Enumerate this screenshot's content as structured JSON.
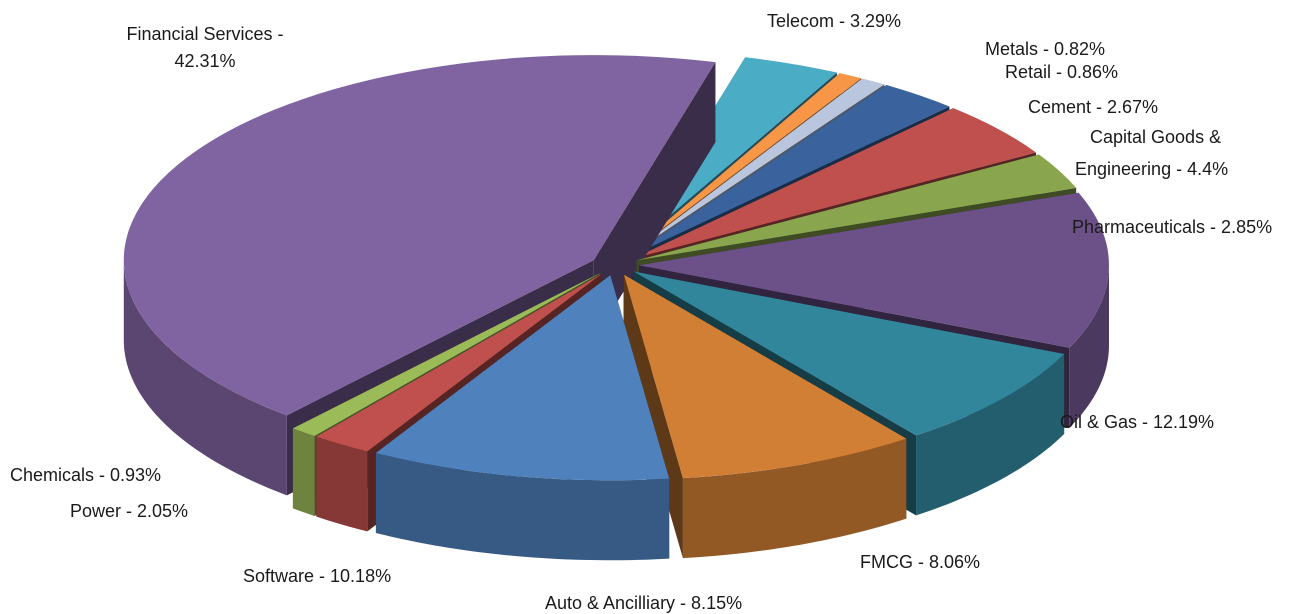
{
  "chart_data": {
    "type": "pie3d",
    "labels": [
      [
        "Telecom - 3.29%"
      ],
      [
        "Metals - 0.82%"
      ],
      [
        "Retail - 0.86%"
      ],
      [
        "Cement - 2.67%"
      ],
      [
        "Capital Goods &",
        "Engineering - 4.4%"
      ],
      [
        "Pharmaceuticals - 2.85%"
      ],
      [
        "Oil & Gas  - 12.19%"
      ],
      [
        "FMCG - 8.06%"
      ],
      [
        "Auto & Ancilliary - 8.15%"
      ],
      [
        "Software - 10.18%"
      ],
      [
        "Power - 2.05%"
      ],
      [
        "Chemicals - 0.93%"
      ],
      [
        "Financial Services -",
        "42.31%"
      ]
    ],
    "values": [
      3.29,
      0.82,
      0.86,
      2.67,
      4.4,
      2.85,
      12.19,
      8.06,
      8.15,
      10.18,
      2.05,
      0.93,
      42.31
    ],
    "colors": [
      "#4bacc6",
      "#f79646",
      "#b9c6de",
      "#3a639e",
      "#c0504d",
      "#89a64e",
      "#6c5189",
      "#31869b",
      "#d17f35",
      "#4f81bd",
      "#c0504d",
      "#9bbb59",
      "#8064a2"
    ]
  }
}
